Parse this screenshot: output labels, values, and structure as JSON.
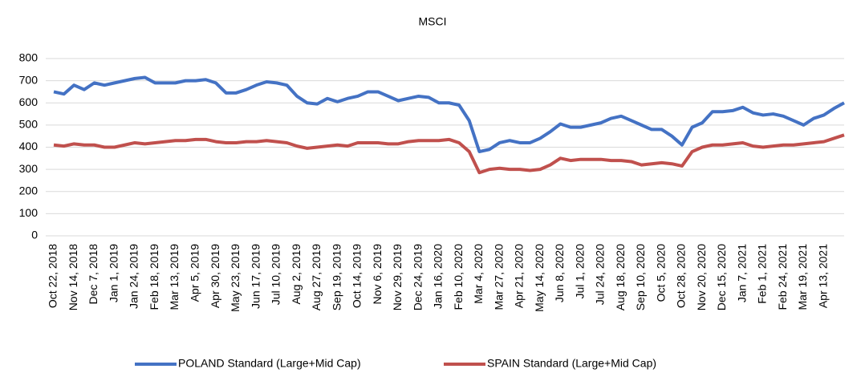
{
  "chart_data": {
    "type": "line",
    "title": "MSCI",
    "categories": [
      "Oct 22, 2018",
      null,
      "Nov 14, 2018",
      null,
      "Dec 7, 2018",
      null,
      "Jan 1, 2019",
      null,
      "Jan 24, 2019",
      null,
      "Feb 18, 2019",
      null,
      "Mar 13, 2019",
      null,
      "Apr 5, 2019",
      null,
      "Apr 30, 2019",
      null,
      "May 23, 2019",
      null,
      "Jun 17, 2019",
      null,
      "Jul 10, 2019",
      null,
      "Aug 2, 2019",
      null,
      "Aug 27, 2019",
      null,
      "Sep 19, 2019",
      null,
      "Oct 14, 2019",
      null,
      "Nov 6, 2019",
      null,
      "Nov 29, 2019",
      null,
      "Dec 24, 2019",
      null,
      "Jan 16, 2020",
      null,
      "Feb 10, 2020",
      null,
      "Mar 4, 2020",
      null,
      "Mar 27, 2020",
      null,
      "Apr 21, 2020",
      null,
      "May 14, 2020",
      null,
      "Jun 8, 2020",
      null,
      "Jul 1, 2020",
      null,
      "Jul 24, 2020",
      null,
      "Aug 18, 2020",
      null,
      "Sep 10, 2020",
      null,
      "Oct 5, 2020",
      null,
      "Oct 28, 2020",
      null,
      "Nov 20, 2020",
      null,
      "Dec 15, 2020",
      null,
      "Jan 7, 2021",
      null,
      "Feb 1, 2021",
      null,
      "Feb 24, 2021",
      null,
      "Mar 19, 2021",
      null,
      "Apr 13, 2021",
      null,
      null
    ],
    "series": [
      {
        "name": "POLAND Standard (Large+Mid Cap)",
        "color": "#4472c4",
        "values": [
          650,
          640,
          680,
          660,
          690,
          680,
          690,
          700,
          710,
          715,
          690,
          690,
          690,
          700,
          700,
          705,
          690,
          645,
          645,
          660,
          680,
          695,
          690,
          680,
          630,
          600,
          595,
          620,
          605,
          620,
          630,
          650,
          650,
          630,
          610,
          620,
          630,
          625,
          600,
          600,
          590,
          520,
          380,
          390,
          420,
          430,
          420,
          420,
          440,
          470,
          505,
          490,
          490,
          500,
          510,
          530,
          540,
          520,
          500,
          480,
          480,
          450,
          410,
          490,
          510,
          560,
          560,
          565,
          580,
          555,
          545,
          550,
          540,
          520,
          500,
          530,
          545,
          575,
          600
        ]
      },
      {
        "name": "SPAIN Standard (Large+Mid Cap)",
        "color": "#c0504d",
        "values": [
          410,
          405,
          415,
          410,
          410,
          400,
          400,
          410,
          420,
          415,
          420,
          425,
          430,
          430,
          435,
          435,
          425,
          420,
          420,
          425,
          425,
          430,
          425,
          420,
          405,
          395,
          400,
          405,
          410,
          405,
          420,
          420,
          420,
          415,
          415,
          425,
          430,
          430,
          430,
          435,
          420,
          380,
          285,
          300,
          305,
          300,
          300,
          295,
          300,
          320,
          350,
          340,
          345,
          345,
          345,
          340,
          340,
          335,
          320,
          325,
          330,
          325,
          315,
          380,
          400,
          410,
          410,
          415,
          420,
          405,
          400,
          405,
          410,
          410,
          415,
          420,
          425,
          440,
          455
        ]
      }
    ],
    "ylim": [
      0,
      800
    ],
    "yticks": [
      0,
      100,
      200,
      300,
      400,
      500,
      600,
      700,
      800
    ],
    "grid": true,
    "legend": "bottom"
  }
}
